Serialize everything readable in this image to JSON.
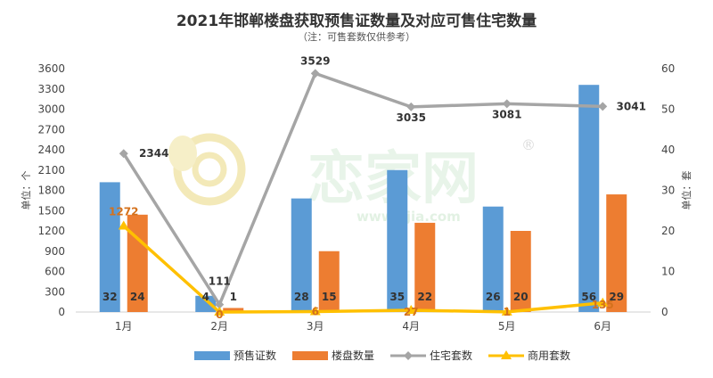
{
  "title": "2021年邯郸楼盘获取预售证数量及对应可售住宅数量",
  "subtitle": "（注：可售套数仅供参考）",
  "watermark": "恋家网 www.Ljia.com",
  "chart_data": {
    "type": "bar",
    "categories": [
      "1月",
      "2月",
      "3月",
      "4月",
      "5月",
      "6月"
    ],
    "left_axis": {
      "label": "单位：个",
      "ylim": [
        0,
        3600
      ],
      "ticks": [
        0,
        300,
        600,
        900,
        1200,
        1500,
        1800,
        2100,
        2400,
        2700,
        3000,
        3300,
        3600
      ]
    },
    "right_axis": {
      "label": "单位：套",
      "ylim": [
        0,
        60
      ],
      "ticks": [
        0,
        10,
        20,
        30,
        40,
        50,
        60
      ]
    },
    "series": [
      {
        "name": "预售证数",
        "kind": "bar",
        "axis": "right",
        "color": "#5b9bd5",
        "values": [
          32,
          4,
          28,
          35,
          26,
          56
        ],
        "label_color": "#333333"
      },
      {
        "name": "楼盘数量",
        "kind": "bar",
        "axis": "right",
        "color": "#ed7d31",
        "values": [
          24,
          1,
          15,
          22,
          20,
          29
        ],
        "label_color": "#333333"
      },
      {
        "name": "住宅套数",
        "kind": "line",
        "axis": "left",
        "color": "#a5a5a5",
        "values": [
          2344,
          111,
          3529,
          3035,
          3081,
          3041
        ],
        "label_color": "#333333"
      },
      {
        "name": "商用套数",
        "kind": "line",
        "axis": "left",
        "color": "#ffc000",
        "values": [
          1272,
          0,
          6,
          27,
          1,
          135
        ],
        "label_color": "#d4711c"
      }
    ],
    "legend_position": "bottom",
    "grid": false
  }
}
